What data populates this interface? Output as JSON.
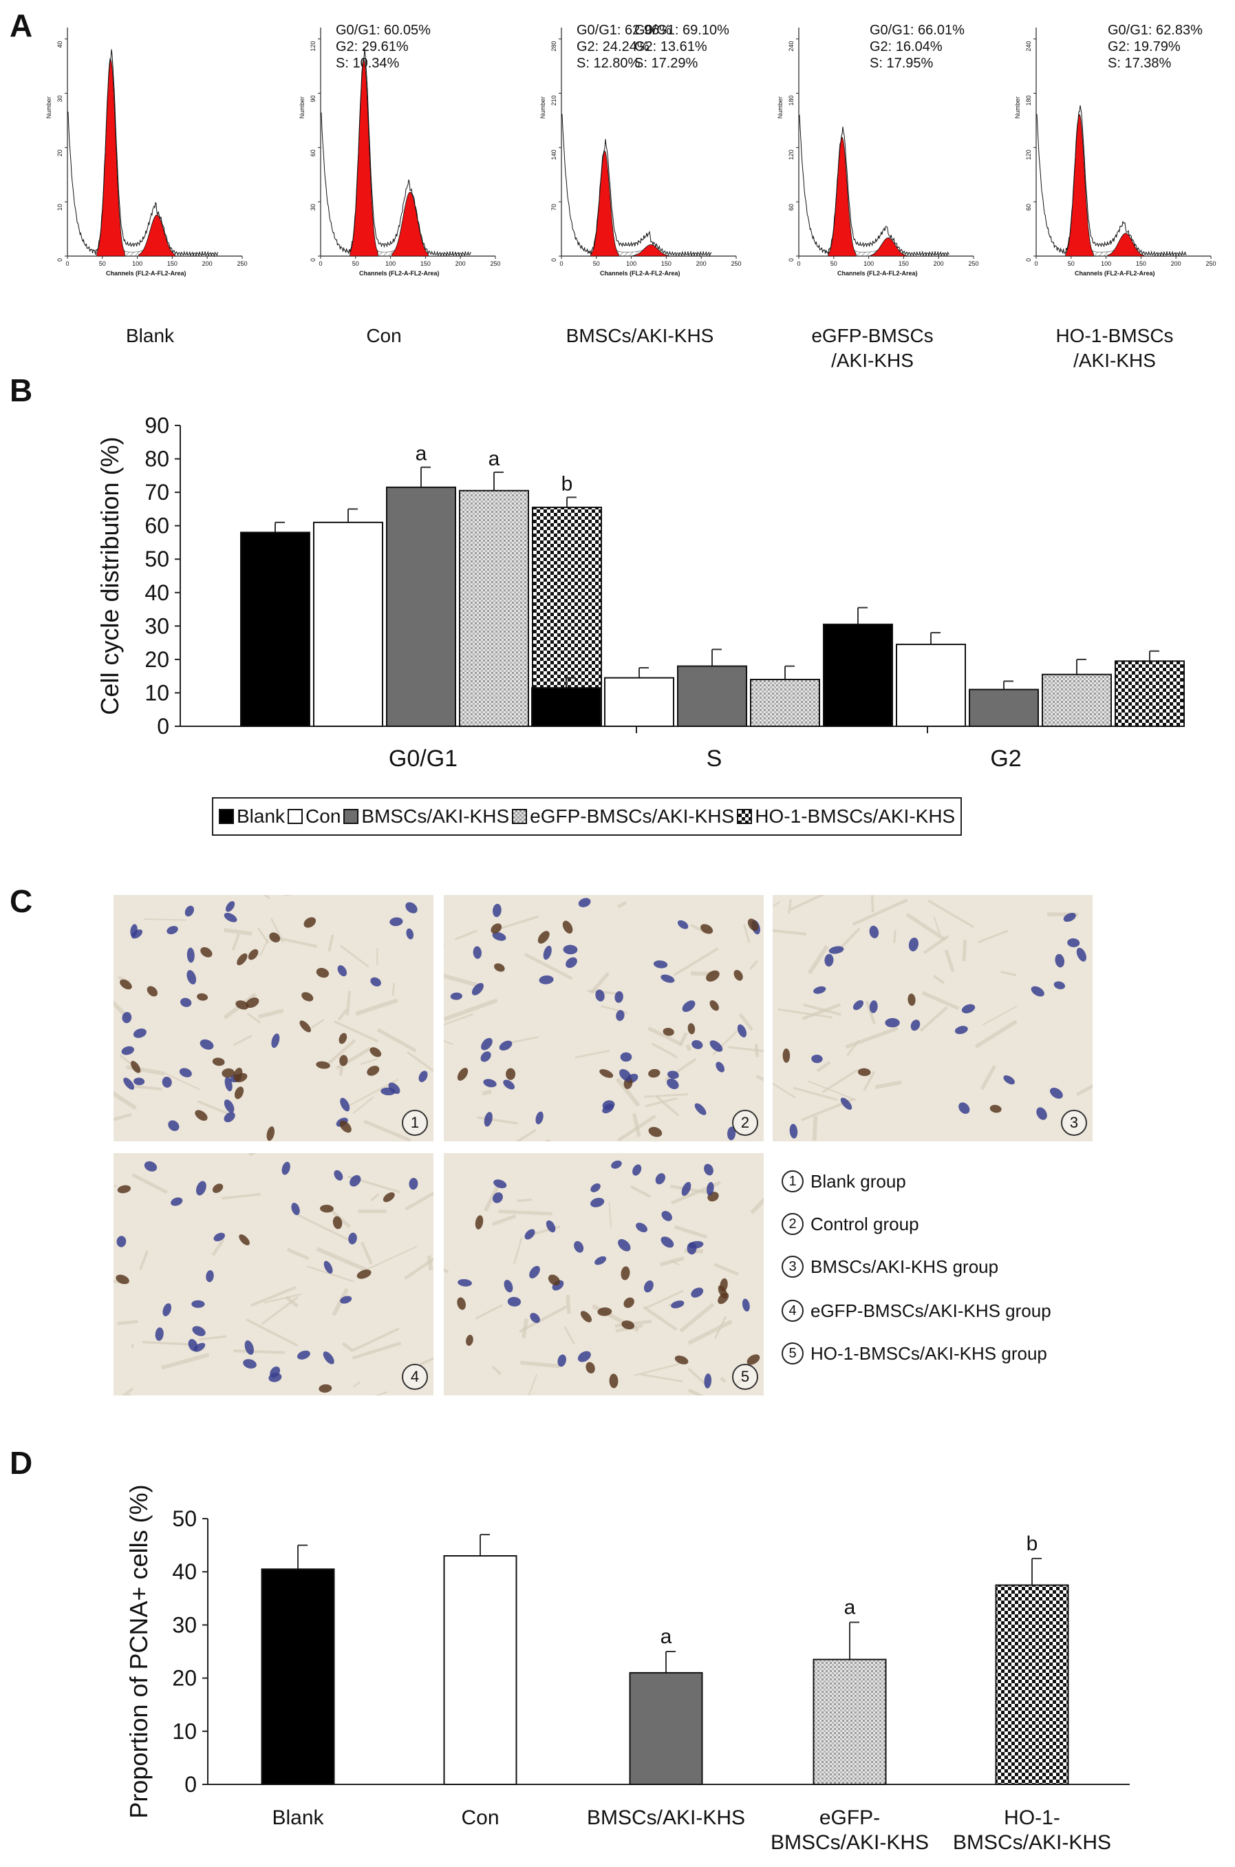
{
  "panels": {
    "a": "A",
    "b": "B",
    "c": "C",
    "d": "D"
  },
  "panel_a": {
    "histograms": [
      {
        "label": "Blank",
        "stats": [
          "G0/G1: 60.05%",
          "G2: 29.61%",
          "S: 10.34%"
        ],
        "y_ticks": [
          "0",
          "10",
          "20",
          "30",
          "40"
        ],
        "g1_height": 0.86,
        "g2_height": 0.18
      },
      {
        "label": "Con",
        "stats": [
          "G0/G1: 62.96%",
          "G2: 24.24%",
          "S: 12.80%"
        ],
        "y_ticks": [
          "0",
          "30",
          "60",
          "90",
          "120"
        ],
        "g1_height": 0.86,
        "g2_height": 0.28
      },
      {
        "label": "BMSCs/AKI-KHS",
        "stats": [
          "G0/G1: 69.10%",
          "G2: 13.61%",
          "S: 17.29%"
        ],
        "y_ticks": [
          "0",
          "70",
          "140",
          "210",
          "280"
        ],
        "g1_height": 0.46,
        "g2_height": 0.05
      },
      {
        "label": "eGFP-BMSCs\n/AKI-KHS",
        "stats": [
          "G0/G1: 66.01%",
          "G2: 16.04%",
          "S: 17.95%"
        ],
        "y_ticks": [
          "0",
          "60",
          "120",
          "180",
          "240"
        ],
        "g1_height": 0.52,
        "g2_height": 0.08
      },
      {
        "label": "HO-1-BMSCs\n/AKI-KHS",
        "stats": [
          "G0/G1: 62.83%",
          "G2: 19.79%",
          "S: 17.38%"
        ],
        "y_ticks": [
          "0",
          "60",
          "120",
          "180",
          "240"
        ],
        "g1_height": 0.62,
        "g2_height": 0.1
      }
    ],
    "x_ticks": [
      "0",
      "50",
      "100",
      "150",
      "200",
      "250"
    ],
    "x_axis_label": "Channels (FL2-A-FL2-Area)",
    "y_axis_label": "Number"
  },
  "panel_c": {
    "captions": [
      {
        "num": "1",
        "text": "Blank group"
      },
      {
        "num": "2",
        "text": "Control group"
      },
      {
        "num": "3",
        "text": "BMSCs/AKI-KHS group"
      },
      {
        "num": "4",
        "text": "eGFP-BMSCs/AKI-KHS group"
      },
      {
        "num": "5",
        "text": "HO-1-BMSCs/AKI-KHS group"
      }
    ],
    "photo_nums": [
      "1",
      "2",
      "3",
      "4",
      "5"
    ]
  },
  "colors": {
    "histogram_fill": "#ee1111",
    "bar_blank": "#000000",
    "bar_con": "#ffffff",
    "bar_bmsc": "#6e6e6e",
    "bar_egfp": "#c8c8c8",
    "bar_ho1": "#333333",
    "photo_bg": "#ece6da",
    "nucleus_blue": "#3a3f8f",
    "nucleus_brown": "#5a3a22"
  },
  "chart_data": [
    {
      "type": "bar",
      "panel": "B",
      "categories": [
        "G0/G1",
        "S",
        "G2"
      ],
      "ylabel": "Cell cycle distribution (%)",
      "ylim": [
        0,
        90
      ],
      "yticks": [
        0,
        10,
        20,
        30,
        40,
        50,
        60,
        70,
        80,
        90
      ],
      "legend_placement": "bottom",
      "series": [
        {
          "name": "Blank",
          "values": [
            58,
            11.5,
            30.5
          ],
          "errors": [
            3,
            3,
            5
          ],
          "annotations": [
            "",
            "",
            ""
          ]
        },
        {
          "name": "Con",
          "values": [
            61,
            14.5,
            24.5
          ],
          "errors": [
            4,
            3,
            3.5
          ],
          "annotations": [
            "",
            "",
            ""
          ]
        },
        {
          "name": "BMSCs/AKI-KHS",
          "values": [
            71.5,
            18,
            11
          ],
          "errors": [
            6,
            5,
            2.5
          ],
          "annotations": [
            "a",
            "",
            ""
          ]
        },
        {
          "name": "eGFP-BMSCs/AKI-KHS",
          "values": [
            70.5,
            14,
            15.5
          ],
          "errors": [
            5.5,
            4,
            4.5
          ],
          "annotations": [
            "a",
            "",
            ""
          ]
        },
        {
          "name": "HO-1-BMSCs/AKI-KHS",
          "values": [
            65.5,
            15.5,
            19.5
          ],
          "errors": [
            3,
            5,
            3
          ],
          "annotations": [
            "b",
            "",
            ""
          ]
        }
      ]
    },
    {
      "type": "bar",
      "panel": "D",
      "categories": [
        "Blank",
        "Con",
        "BMSCs/AKI-KHS",
        "eGFP-\nBMSCs/AKI-KHS",
        "HO-1-\nBMSCs/AKI-KHS"
      ],
      "ylabel": "Proportion of PCNA+ cells (%)",
      "ylim": [
        0,
        50
      ],
      "yticks": [
        0,
        10,
        20,
        30,
        40,
        50
      ],
      "values": [
        40.5,
        43,
        21,
        23.5,
        37.5
      ],
      "errors": [
        4.5,
        4,
        4,
        7,
        5
      ],
      "annotations": [
        "",
        "",
        "a",
        "a",
        "b"
      ]
    }
  ]
}
